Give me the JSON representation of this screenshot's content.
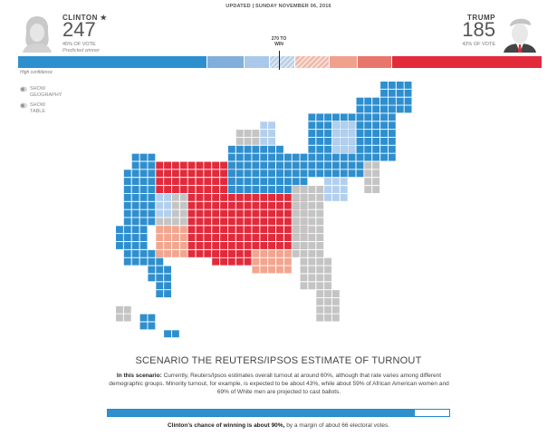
{
  "header": {
    "updated": "UPDATED | SUNDAY NOVEMBER 06, 2016",
    "threshold_label_line1": "270 TO",
    "threshold_label_line2": "WIN",
    "high_confidence": "High confidence"
  },
  "candidates": {
    "left": {
      "name": "CLINTON",
      "star": "★",
      "votes": "247",
      "pct": "45% OF VOTE",
      "predicted": "Predicted winner",
      "portrait_icon": "clinton-portrait-icon"
    },
    "right": {
      "name": "TRUMP",
      "votes": "185",
      "pct": "42% OF VOTE",
      "portrait_icon": "trump-portrait-icon"
    }
  },
  "bar_segments": [
    {
      "color": "#2e8fcf",
      "flex": 197,
      "kind": "solid"
    },
    {
      "color": "#81afd9",
      "flex": 38,
      "kind": "solid"
    },
    {
      "color": "#aac9ea",
      "flex": 26,
      "kind": "solid"
    },
    {
      "color": "#c7d8ea",
      "flex": 26,
      "kind": "hatch-blue"
    },
    {
      "color": "#f3c9bd",
      "flex": 35,
      "kind": "hatch-red"
    },
    {
      "color": "#f1a08e",
      "flex": 28,
      "kind": "solid"
    },
    {
      "color": "#e9766c",
      "flex": 35,
      "kind": "solid"
    },
    {
      "color": "#e22a3b",
      "flex": 157,
      "kind": "solid"
    }
  ],
  "controls": {
    "show_geography": [
      "SHOW",
      "GEOGRAPHY"
    ],
    "show_table": [
      "SHOW",
      "TABLE"
    ]
  },
  "colors": {
    "safe_dem": "#2e8fcf",
    "likely_dem": "#7fb2dd",
    "lean_dem": "#b2cfee",
    "tossup": "#c4c4c4",
    "lean_rep": "#f2a58f",
    "likely_rep": "#ec7565",
    "safe_rep": "#e22a3b"
  },
  "scenario": {
    "title": "SCENARIO THE REUTERS/IPSOS ESTIMATE OF TURNOUT",
    "lead": "In this scenario:",
    "text": " Currently, Reuters/Ipsos estimates overall turnout at around 60%, although that rate varies among different demographic groups. Minority turnout, for example, is expected to be about 43%, while about 59% of African American women and 69% of White men are projected to cast ballots."
  },
  "chance": {
    "value": 0.9,
    "strong": "Clinton’s chance of winning is about 90%,",
    "rest": " by a margin of about 66 electoral votes."
  }
}
